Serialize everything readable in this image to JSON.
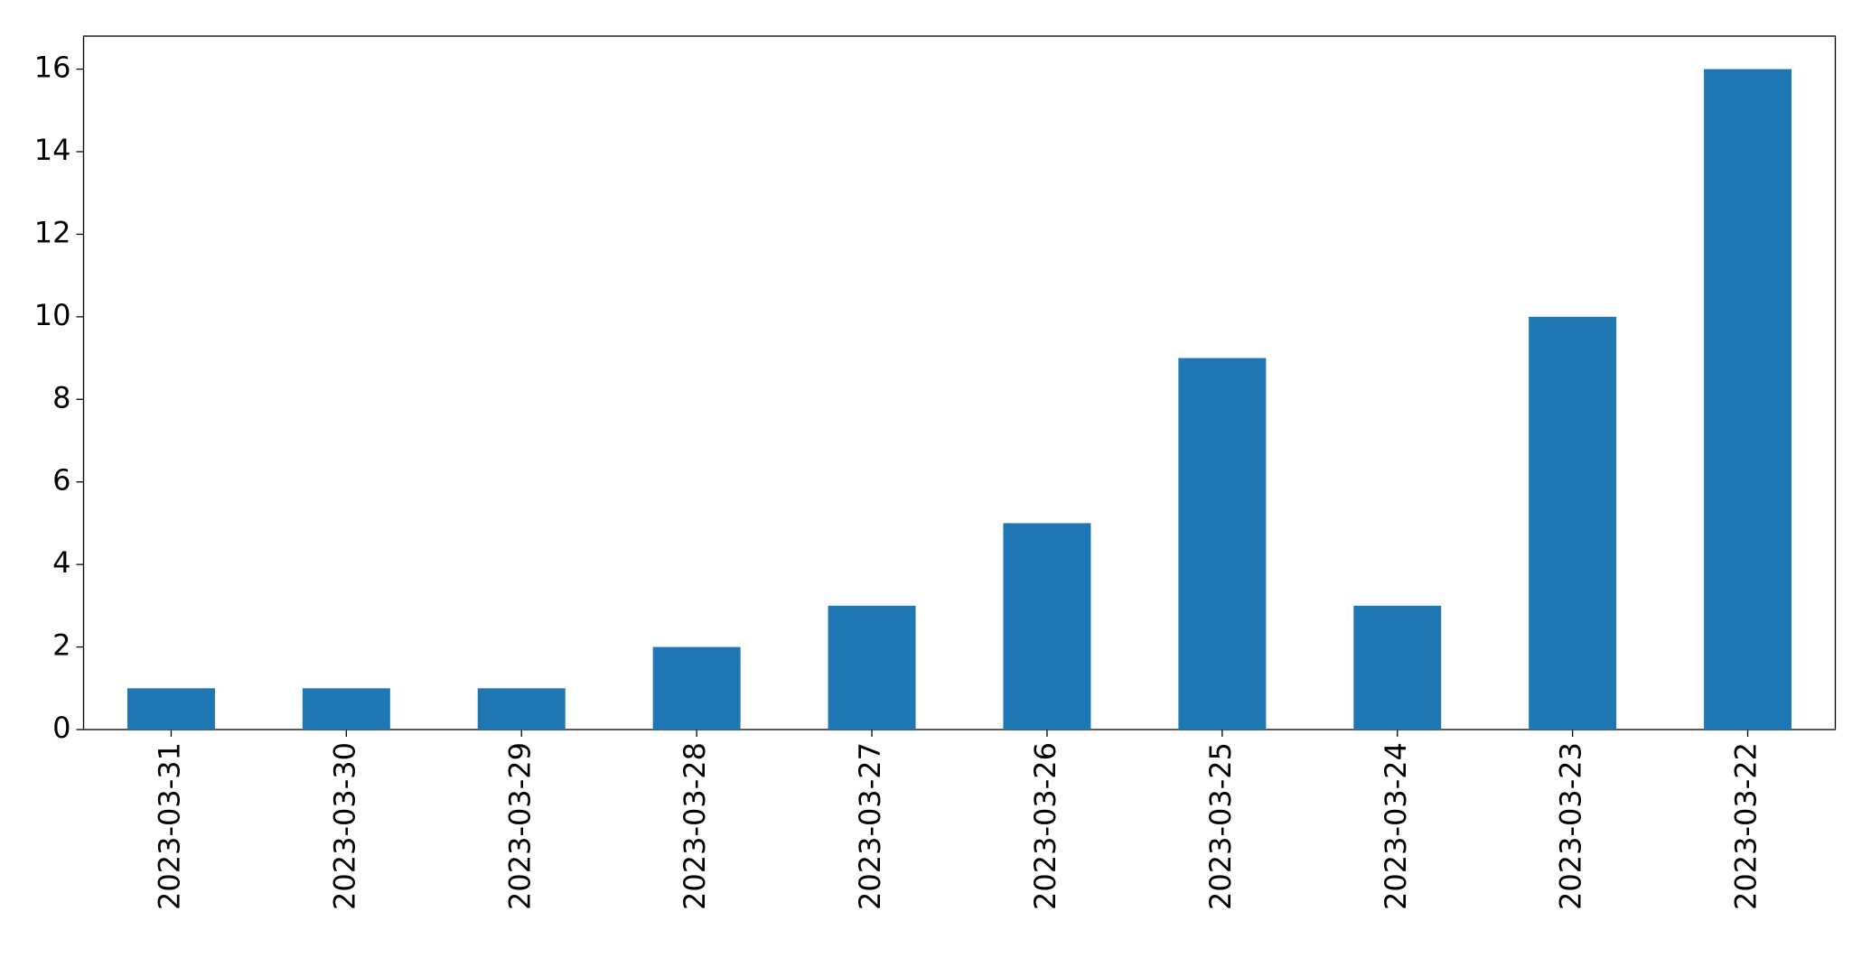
{
  "chart_data": {
    "type": "bar",
    "categories": [
      "2023-03-31",
      "2023-03-30",
      "2023-03-29",
      "2023-03-28",
      "2023-03-27",
      "2023-03-26",
      "2023-03-25",
      "2023-03-24",
      "2023-03-23",
      "2023-03-22"
    ],
    "values": [
      1,
      1,
      1,
      2,
      3,
      5,
      9,
      3,
      10,
      16
    ],
    "color": "#1f77b4",
    "ylim": [
      0,
      16.8
    ],
    "yticks": [
      0,
      2,
      4,
      6,
      8,
      10,
      12,
      14,
      16
    ],
    "grid": false
  }
}
